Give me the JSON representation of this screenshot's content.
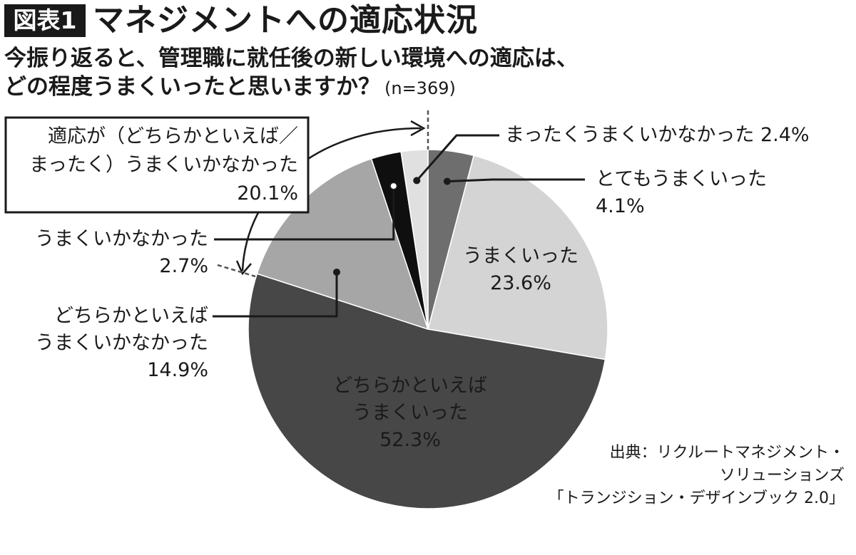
{
  "figure": {
    "badge": "図表1",
    "title": "マネジメントへの適応状況",
    "question_line1": "今振り返ると、管理職に就任後の新しい環境への適応は、",
    "question_line2": "どの程度うまくいったと思いますか？",
    "sample_size": "(n=369)"
  },
  "chart_data": {
    "type": "pie",
    "title": "マネジメントへの適応状況",
    "start": "12 o'clock, clockwise",
    "slices": [
      {
        "id": "very-good",
        "label_lines": [
          "とてもうまくいった",
          "4.1%"
        ],
        "value": 4.1,
        "color": "#6e6e6e"
      },
      {
        "id": "good",
        "label_lines": [
          "うまくいった",
          "23.6%"
        ],
        "value": 23.6,
        "color": "#d4d4d4"
      },
      {
        "id": "somewhat-good",
        "label_lines": [
          "どちらかといえば",
          "うまくいった",
          "52.3%"
        ],
        "value": 52.3,
        "color": "#474747"
      },
      {
        "id": "somewhat-bad",
        "label_lines": [
          "どちらかといえば",
          "うまくいかなかった",
          "14.9%"
        ],
        "value": 14.9,
        "color": "#a6a6a6"
      },
      {
        "id": "bad",
        "label_lines": [
          "うまくいかなかった",
          "2.7%"
        ],
        "value": 2.7,
        "color": "#0f0f0f"
      },
      {
        "id": "not-at-all",
        "label_lines": [
          "まったくうまくいかなかった 2.4%"
        ],
        "value": 2.4,
        "color": "#e0e0e0"
      }
    ],
    "summary_box": {
      "line1": "適応が（どちらかといえば／",
      "line2": "まったく）うまくいかなかった",
      "line3": "20.1%"
    }
  },
  "source": {
    "line1": "出典：リクルートマネジメント・",
    "line2": "ソリューションズ",
    "line3": "「トランジション・デザインブック 2.0」"
  }
}
